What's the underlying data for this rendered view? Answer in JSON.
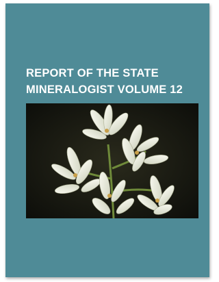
{
  "cover": {
    "title_lines": [
      "REPORT OF THE STATE",
      "MINERALOGIST VOLUME 12"
    ]
  }
}
